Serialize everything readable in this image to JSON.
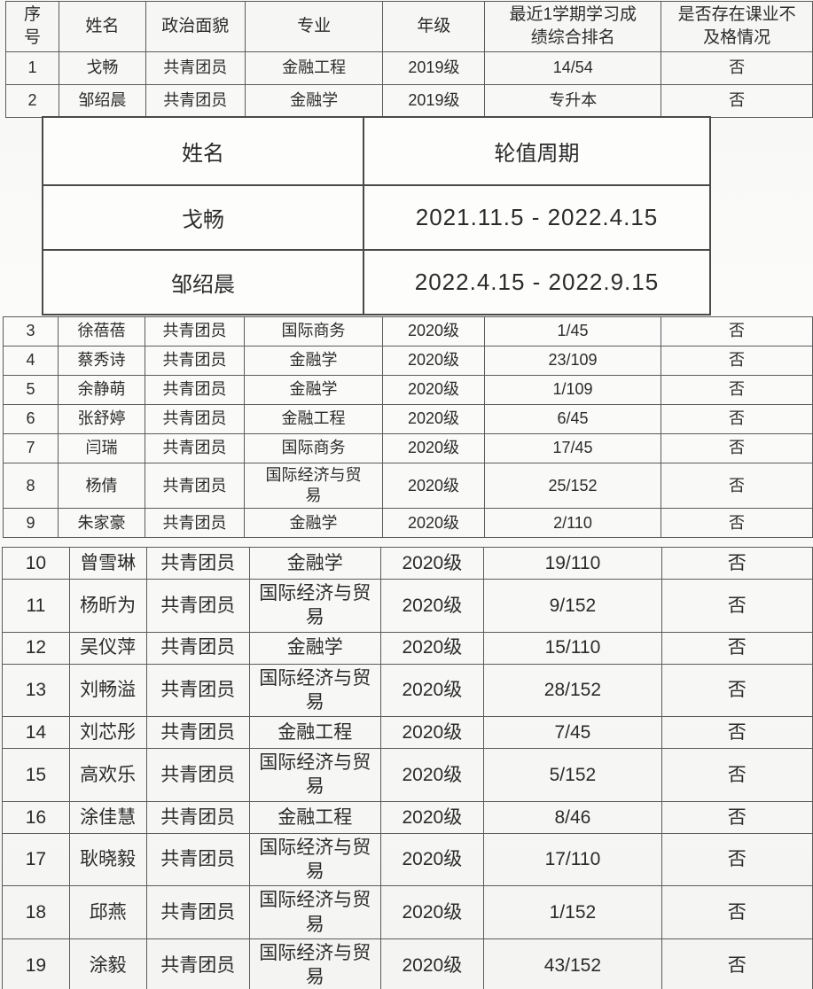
{
  "document": {
    "kind": "student-roster-photo",
    "text_color": "#2b2b2b",
    "border_color": "#5b5b5b",
    "background_color": "#f7f7f5"
  },
  "main_table": {
    "header": [
      "序\n号",
      "姓名",
      "政治面貌",
      "专业",
      "年级",
      "最近1学期学习成\n绩综合排名",
      "是否存在课业不\n及格情况"
    ],
    "rows_top": [
      {
        "seq": "1",
        "name": "戈畅",
        "political": "共青团员",
        "major": "金融工程",
        "grade": "2019级",
        "rank": "14/54",
        "fail": "否"
      },
      {
        "seq": "2",
        "name": "邹绍晨",
        "political": "共青团员",
        "major": "金融学",
        "grade": "2019级",
        "rank": "专升本",
        "fail": "否"
      }
    ],
    "rows_middle": [
      {
        "seq": "3",
        "name": "徐蓓蓓",
        "political": "共青团员",
        "major": "国际商务",
        "grade": "2020级",
        "rank": "1/45",
        "fail": "否"
      },
      {
        "seq": "4",
        "name": "蔡秀诗",
        "political": "共青团员",
        "major": "金融学",
        "grade": "2020级",
        "rank": "23/109",
        "fail": "否"
      },
      {
        "seq": "5",
        "name": "余静萌",
        "political": "共青团员",
        "major": "金融学",
        "grade": "2020级",
        "rank": "1/109",
        "fail": "否"
      },
      {
        "seq": "6",
        "name": "张舒婷",
        "political": "共青团员",
        "major": "金融工程",
        "grade": "2020级",
        "rank": "6/45",
        "fail": "否"
      },
      {
        "seq": "7",
        "name": "闫瑞",
        "political": "共青团员",
        "major": "国际商务",
        "grade": "2020级",
        "rank": "17/45",
        "fail": "否"
      },
      {
        "seq": "8",
        "name": "杨倩",
        "political": "共青团员",
        "major": "国际经济与贸\n易",
        "grade": "2020级",
        "rank": "25/152",
        "fail": "否"
      },
      {
        "seq": "9",
        "name": "朱家豪",
        "political": "共青团员",
        "major": "金融学",
        "grade": "2020级",
        "rank": "2/110",
        "fail": "否"
      }
    ],
    "rows_bottom": [
      {
        "seq": "10",
        "name": "曾雪琳",
        "political": "共青团员",
        "major": "金融学",
        "grade": "2020级",
        "rank": "19/110",
        "fail": "否"
      },
      {
        "seq": "11",
        "name": "杨昕为",
        "political": "共青团员",
        "major": "国际经济与贸\n易",
        "grade": "2020级",
        "rank": "9/152",
        "fail": "否"
      },
      {
        "seq": "12",
        "name": "吴仪萍",
        "political": "共青团员",
        "major": "金融学",
        "grade": "2020级",
        "rank": "15/110",
        "fail": "否"
      },
      {
        "seq": "13",
        "name": "刘畅溢",
        "political": "共青团员",
        "major": "国际经济与贸\n易",
        "grade": "2020级",
        "rank": "28/152",
        "fail": "否"
      },
      {
        "seq": "14",
        "name": "刘芯彤",
        "political": "共青团员",
        "major": "金融工程",
        "grade": "2020级",
        "rank": "7/45",
        "fail": "否"
      },
      {
        "seq": "15",
        "name": "高欢乐",
        "political": "共青团员",
        "major": "国际经济与贸\n易",
        "grade": "2020级",
        "rank": "5/152",
        "fail": "否"
      },
      {
        "seq": "16",
        "name": "涂佳慧",
        "political": "共青团员",
        "major": "金融工程",
        "grade": "2020级",
        "rank": "8/46",
        "fail": "否"
      },
      {
        "seq": "17",
        "name": "耿晓毅",
        "political": "共青团员",
        "major": "国际经济与贸\n易",
        "grade": "2020级",
        "rank": "17/110",
        "fail": "否"
      },
      {
        "seq": "18",
        "name": "邱燕",
        "political": "共青团员",
        "major": "国际经济与贸\n易",
        "grade": "2020级",
        "rank": "1/152",
        "fail": "否"
      },
      {
        "seq": "19",
        "name": "涂毅",
        "political": "共青团员",
        "major": "国际经济与贸\n易",
        "grade": "2020级",
        "rank": "43/152",
        "fail": "否"
      }
    ]
  },
  "duty_table": {
    "header": [
      "姓名",
      "轮值周期"
    ],
    "rows": [
      {
        "name": "戈畅",
        "period": "2021.11.5 - 2022.4.15"
      },
      {
        "name": "邹绍晨",
        "period": "2022.4.15 - 2022.9.15"
      }
    ]
  }
}
